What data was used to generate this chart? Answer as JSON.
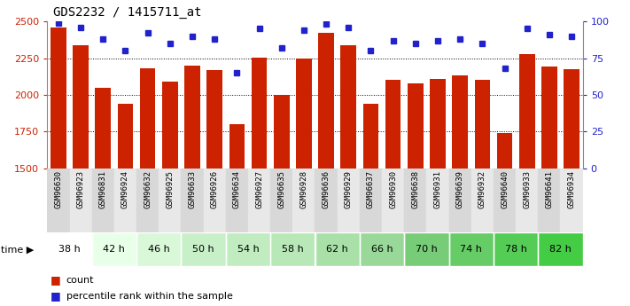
{
  "title": "GDS2232 / 1415711_at",
  "samples": [
    "GSM96630",
    "GSM96923",
    "GSM96831",
    "GSM96924",
    "GSM96632",
    "GSM96925",
    "GSM96633",
    "GSM96926",
    "GSM96634",
    "GSM96927",
    "GSM96635",
    "GSM96928",
    "GSM96636",
    "GSM96929",
    "GSM96637",
    "GSM96930",
    "GSM96638",
    "GSM96931",
    "GSM96639",
    "GSM96932",
    "GSM96640",
    "GSM96933",
    "GSM96641",
    "GSM96934"
  ],
  "counts": [
    2460,
    2340,
    2050,
    1940,
    2180,
    2090,
    2200,
    2170,
    1800,
    2255,
    2000,
    2245,
    2420,
    2340,
    1940,
    2100,
    2080,
    2110,
    2130,
    2100,
    1740,
    2275,
    2190,
    2175
  ],
  "percentiles": [
    99,
    96,
    88,
    80,
    92,
    85,
    90,
    88,
    65,
    95,
    82,
    94,
    98,
    96,
    80,
    87,
    85,
    87,
    88,
    85,
    68,
    95,
    91,
    90
  ],
  "time_groups": [
    {
      "label": "38 h",
      "color": "#ffffff"
    },
    {
      "label": "42 h",
      "color": "#e8ffe8"
    },
    {
      "label": "46 h",
      "color": "#d8f8d8"
    },
    {
      "label": "50 h",
      "color": "#c8f0c8"
    },
    {
      "label": "54 h",
      "color": "#c0ecc0"
    },
    {
      "label": "58 h",
      "color": "#b8e8b8"
    },
    {
      "label": "62 h",
      "color": "#a8e0a8"
    },
    {
      "label": "66 h",
      "color": "#98d898"
    },
    {
      "label": "70 h",
      "color": "#77cc77"
    },
    {
      "label": "74 h",
      "color": "#66cc66"
    },
    {
      "label": "78 h",
      "color": "#55cc55"
    },
    {
      "label": "82 h",
      "color": "#44cc44"
    }
  ],
  "bar_color": "#cc2200",
  "dot_color": "#2222cc",
  "ylim_left": [
    1500,
    2500
  ],
  "ylim_right": [
    0,
    100
  ],
  "yticks_left": [
    1500,
    1750,
    2000,
    2250,
    2500
  ],
  "yticks_right": [
    0,
    25,
    50,
    75,
    100
  ],
  "col_colors_even": "#d8d8d8",
  "col_colors_odd": "#e8e8e8"
}
